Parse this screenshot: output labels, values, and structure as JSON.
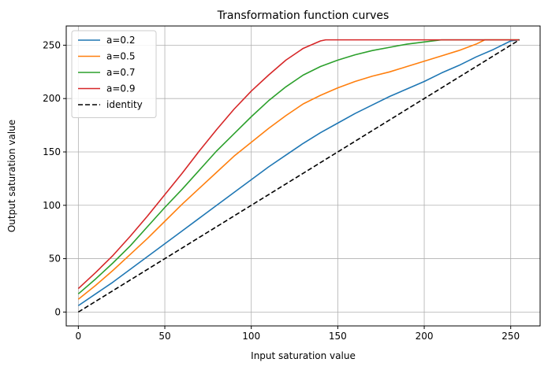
{
  "chart_data": {
    "type": "line",
    "title": "Transformation function curves",
    "xlabel": "Input saturation value",
    "ylabel": "Output saturation value",
    "xlim": [
      -7,
      267
    ],
    "ylim": [
      -13,
      268
    ],
    "xticks": [
      0,
      50,
      100,
      150,
      200,
      250
    ],
    "yticks": [
      0,
      50,
      100,
      150,
      200,
      250
    ],
    "grid": true,
    "legend_position": "top-left",
    "series": [
      {
        "name": "a=0.2",
        "color": "#1f77b4",
        "dash": "solid",
        "x": [
          0,
          10,
          20,
          30,
          40,
          50,
          60,
          70,
          80,
          90,
          100,
          110,
          120,
          130,
          140,
          150,
          160,
          170,
          180,
          190,
          200,
          210,
          220,
          230,
          240,
          250,
          255
        ],
        "y": [
          6,
          17,
          28,
          40,
          52,
          64,
          76,
          88,
          100,
          112,
          124,
          136,
          147,
          158,
          168,
          177,
          186,
          194,
          202,
          209,
          216,
          224,
          231,
          239,
          246,
          254,
          255
        ]
      },
      {
        "name": "a=0.5",
        "color": "#ff7f0e",
        "dash": "solid",
        "x": [
          0,
          10,
          20,
          30,
          40,
          50,
          60,
          70,
          80,
          90,
          100,
          110,
          120,
          130,
          140,
          150,
          160,
          170,
          180,
          190,
          200,
          210,
          220,
          230,
          235,
          255
        ],
        "y": [
          12,
          25,
          39,
          54,
          69,
          85,
          101,
          116,
          131,
          146,
          159,
          172,
          184,
          195,
          203,
          210,
          216,
          221,
          225,
          230,
          235,
          240,
          245,
          251,
          255,
          255
        ]
      },
      {
        "name": "a=0.7",
        "color": "#2ca02c",
        "dash": "solid",
        "x": [
          0,
          10,
          20,
          30,
          40,
          50,
          60,
          70,
          80,
          90,
          100,
          110,
          120,
          130,
          140,
          150,
          160,
          170,
          180,
          190,
          200,
          210,
          255
        ],
        "y": [
          17,
          31,
          46,
          62,
          80,
          98,
          115,
          133,
          151,
          167,
          183,
          198,
          211,
          222,
          230,
          236,
          241,
          245,
          248,
          251,
          253,
          255,
          255
        ]
      },
      {
        "name": "a=0.9",
        "color": "#d62728",
        "dash": "solid",
        "x": [
          0,
          10,
          20,
          30,
          40,
          50,
          60,
          70,
          80,
          90,
          100,
          110,
          120,
          130,
          140,
          143,
          255
        ],
        "y": [
          22,
          37,
          53,
          71,
          90,
          110,
          130,
          151,
          171,
          190,
          207,
          222,
          236,
          247,
          254,
          255,
          255
        ]
      },
      {
        "name": "identity",
        "color": "#000000",
        "dash": "dashed",
        "x": [
          0,
          255
        ],
        "y": [
          0,
          255
        ]
      }
    ]
  }
}
